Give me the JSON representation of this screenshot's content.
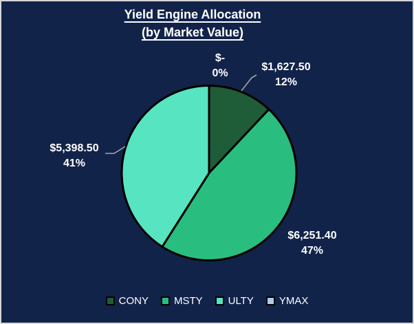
{
  "window": {
    "background_color": "#12234A",
    "frame_border_color": "#D6D6D6"
  },
  "title": {
    "line1": "Yield Engine Allocation",
    "line2": "(by Market Value)"
  },
  "chart_data": {
    "type": "pie",
    "title": "Yield Engine Allocation (by Market Value)",
    "categories": [
      "CONY",
      "MSTY",
      "ULTY",
      "YMAX"
    ],
    "values": [
      1627.5,
      6251.4,
      5398.5,
      0
    ],
    "percentages": [
      12,
      47,
      41,
      0
    ],
    "slice_colors": [
      "#1F5C38",
      "#29BE80",
      "#57E4C0",
      "#AECBE9"
    ],
    "start_angle": "12-o-clock, clockwise",
    "slice_border_color": "#000000",
    "leader_line_color": "#A6A6A6",
    "labels": {
      "CONY": {
        "value": "$1,627.50",
        "pct": "12%"
      },
      "MSTY": {
        "value": "$6,251.40",
        "pct": "47%"
      },
      "ULTY": {
        "value": "$5,398.50",
        "pct": "41%"
      },
      "YMAX": {
        "value": "$-",
        "pct": "0%"
      }
    },
    "legend_position": "bottom"
  },
  "legend": {
    "items": [
      {
        "label": "CONY",
        "color": "#1F5C38"
      },
      {
        "label": "MSTY",
        "color": "#29BE80"
      },
      {
        "label": "ULTY",
        "color": "#57E4C0"
      },
      {
        "label": "YMAX",
        "color": "#AECBE9"
      }
    ]
  }
}
